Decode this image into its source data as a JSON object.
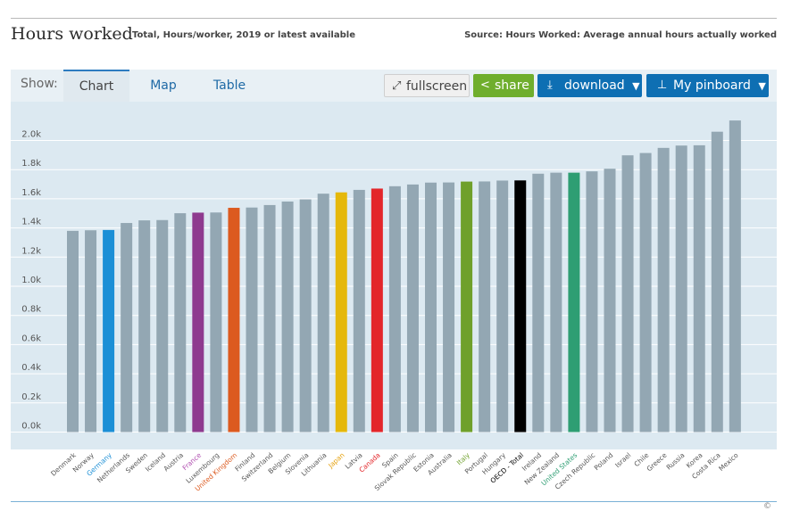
{
  "header": {
    "title": "Hours worked",
    "subtitle": "Total, Hours/worker, 2019 or latest available",
    "source": "Source: Hours Worked: Average annual hours actually worked"
  },
  "toolbar": {
    "show_label": "Show:",
    "tabs": [
      "Chart",
      "Map",
      "Table"
    ],
    "fullscreen_label": "fullscreen",
    "share_label": "share",
    "download_label": "download",
    "pinboard_label": "My pinboard",
    "caret": "▼"
  },
  "footer": {
    "credit": "©"
  },
  "colors": {
    "default_bar": "#93a7b3",
    "plot_background": "#dce9f1",
    "grid": "#ffffff",
    "accent": "#0e6fb3",
    "share": "#6fae2d"
  },
  "chart_data": {
    "type": "bar",
    "title": "Hours worked",
    "xlabel": "",
    "ylabel": "",
    "ylim": [
      0,
      2200
    ],
    "grid": true,
    "yticks": [
      {
        "value": 0,
        "label": "0.0k"
      },
      {
        "value": 200,
        "label": "0.2k"
      },
      {
        "value": 400,
        "label": "0.4k"
      },
      {
        "value": 600,
        "label": "0.6k"
      },
      {
        "value": 800,
        "label": "0.8k"
      },
      {
        "value": 1000,
        "label": "1.0k"
      },
      {
        "value": 1200,
        "label": "1.2k"
      },
      {
        "value": 1400,
        "label": "1.4k"
      },
      {
        "value": 1600,
        "label": "1.6k"
      },
      {
        "value": 1800,
        "label": "1.8k"
      },
      {
        "value": 2000,
        "label": "2.0k"
      }
    ],
    "categories": [
      "Denmark",
      "Norway",
      "Germany",
      "Netherlands",
      "Sweden",
      "Iceland",
      "Austria",
      "France",
      "Luxembourg",
      "United Kingdom",
      "Finland",
      "Switzerland",
      "Belgium",
      "Slovenia",
      "Lithuania",
      "Japan",
      "Latvia",
      "Canada",
      "Spain",
      "Slovak Republic",
      "Estonia",
      "Australia",
      "Italy",
      "Portugal",
      "Hungary",
      "OECD - Total",
      "Ireland",
      "New Zealand",
      "United States",
      "Czech Republic",
      "Poland",
      "Israel",
      "Chile",
      "Greece",
      "Russia",
      "Korea",
      "Costa Rica",
      "Mexico"
    ],
    "values": [
      1380,
      1384,
      1386,
      1434,
      1452,
      1454,
      1501,
      1505,
      1506,
      1538,
      1540,
      1557,
      1581,
      1596,
      1635,
      1644,
      1661,
      1670,
      1686,
      1698,
      1711,
      1712,
      1718,
      1719,
      1725,
      1726,
      1772,
      1779,
      1779,
      1788,
      1806,
      1898,
      1914,
      1949,
      1965,
      1967,
      2060,
      2137
    ],
    "bar_colors": [
      "#93a7b3",
      "#93a7b3",
      "#1b8fd6",
      "#93a7b3",
      "#93a7b3",
      "#93a7b3",
      "#93a7b3",
      "#8e3a8f",
      "#93a7b3",
      "#dc5a1f",
      "#93a7b3",
      "#93a7b3",
      "#93a7b3",
      "#93a7b3",
      "#93a7b3",
      "#e5b80b",
      "#93a7b3",
      "#e3262a",
      "#93a7b3",
      "#93a7b3",
      "#93a7b3",
      "#93a7b3",
      "#6fa02b",
      "#93a7b3",
      "#93a7b3",
      "#000000",
      "#93a7b3",
      "#93a7b3",
      "#2e9e73",
      "#93a7b3",
      "#93a7b3",
      "#93a7b3",
      "#93a7b3",
      "#93a7b3",
      "#93a7b3",
      "#93a7b3",
      "#93a7b3",
      "#93a7b3"
    ],
    "label_colors": [
      "#555555",
      "#555555",
      "#1b8fd6",
      "#555555",
      "#555555",
      "#555555",
      "#555555",
      "#b04fb0",
      "#555555",
      "#dc5a1f",
      "#555555",
      "#555555",
      "#555555",
      "#555555",
      "#555555",
      "#e5a00b",
      "#555555",
      "#e3262a",
      "#555555",
      "#555555",
      "#555555",
      "#555555",
      "#6fa02b",
      "#555555",
      "#555555",
      "#000000",
      "#555555",
      "#555555",
      "#2e9e73",
      "#555555",
      "#555555",
      "#555555",
      "#555555",
      "#555555",
      "#555555",
      "#555555",
      "#555555",
      "#555555"
    ]
  }
}
